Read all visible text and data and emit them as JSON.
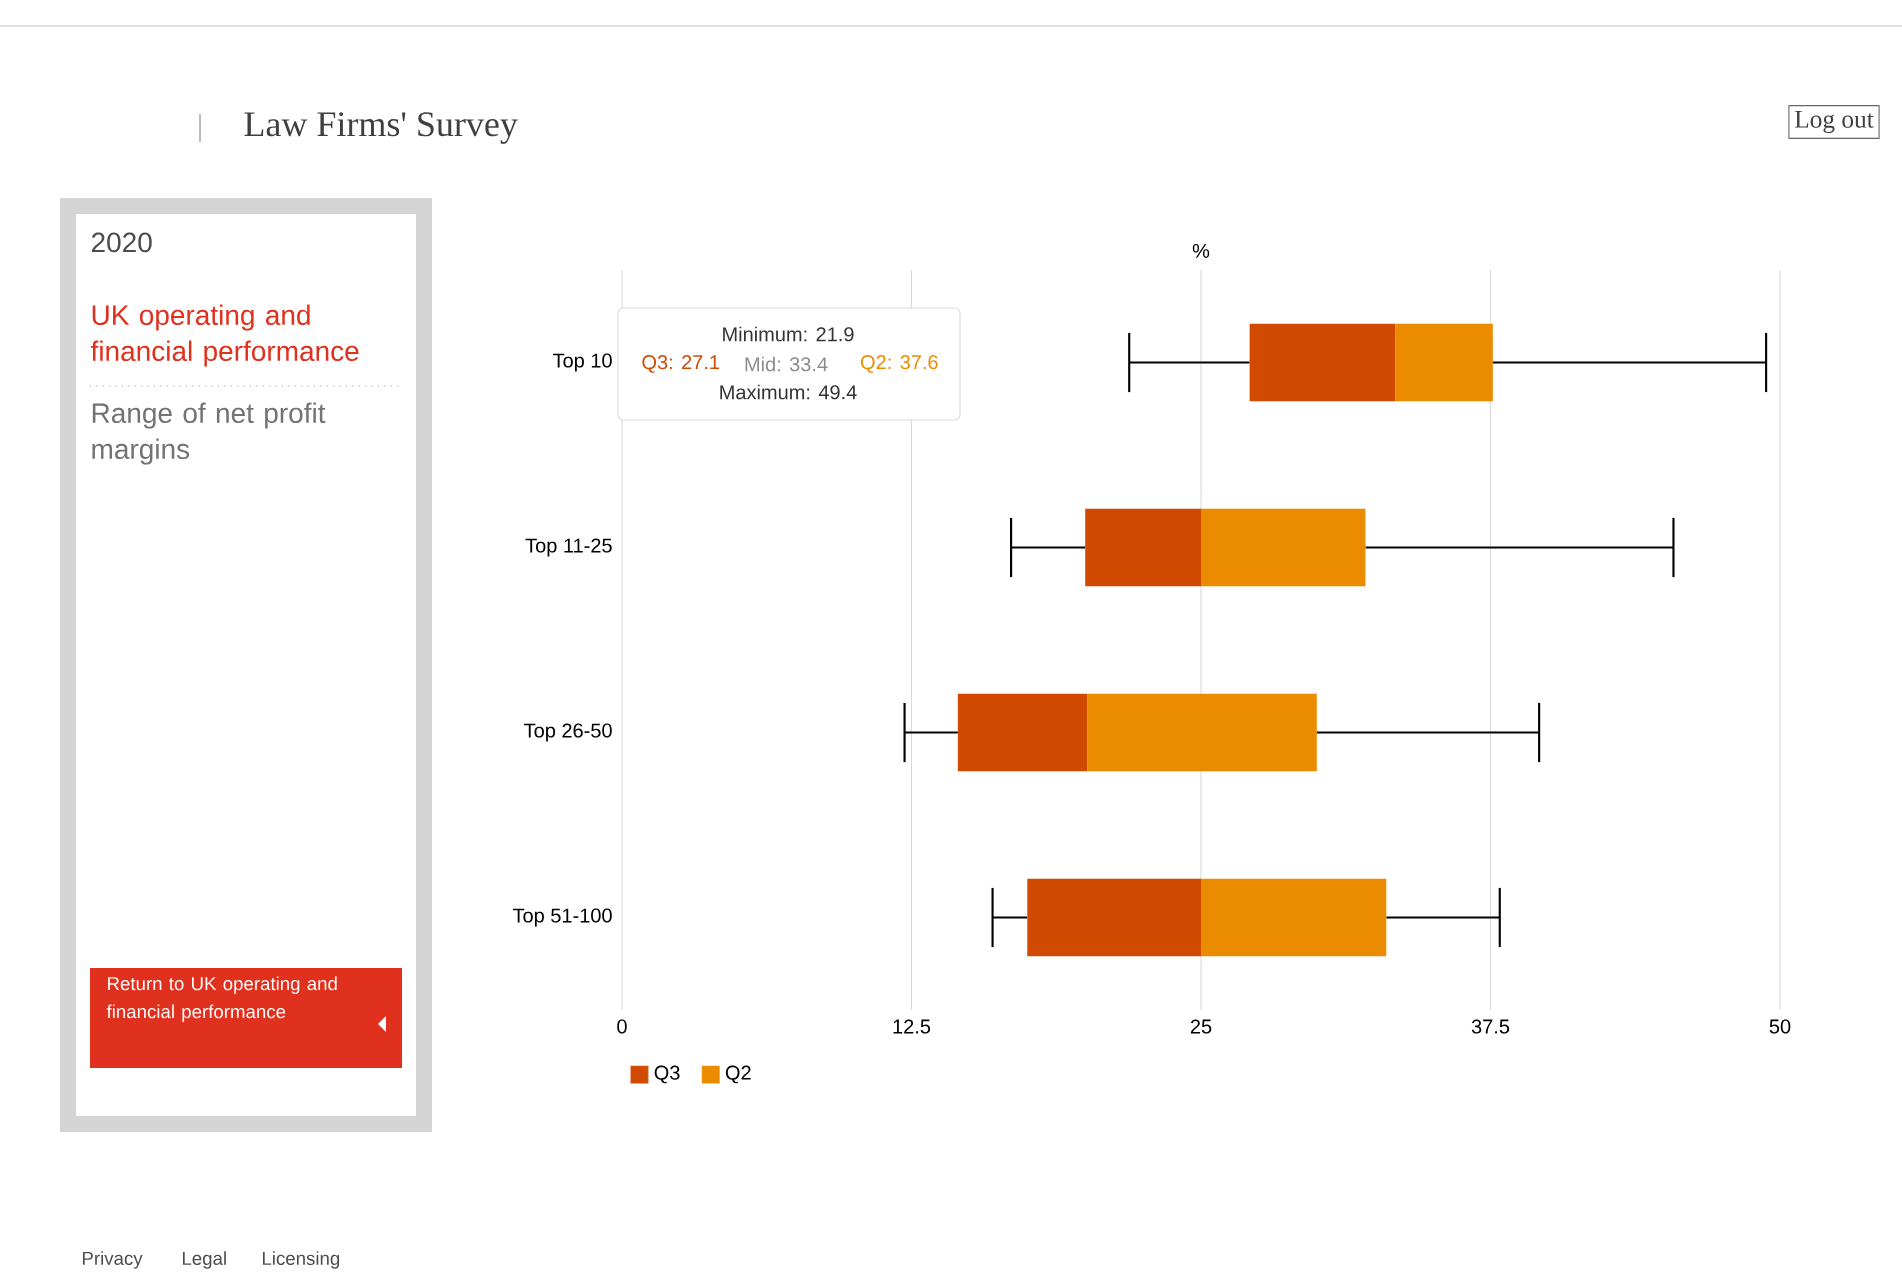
{
  "chart_data": {
    "type": "box",
    "title": "Law Firms' Survey",
    "subtitle": "Range of net profit margins",
    "xlabel": "%",
    "orientation": "horizontal",
    "categories": [
      "Top 10",
      "Top 11-25",
      "Top 26-50",
      "Top 51-100"
    ],
    "boxes": [
      {
        "low": 21.9,
        "q1": 27.1,
        "median": 33.4,
        "q3": 37.6,
        "high": 49.4
      },
      {
        "low": 16.8,
        "q1": 20.0,
        "median": 25.0,
        "q3": 32.1,
        "high": 45.4
      },
      {
        "low": 12.2,
        "q1": 14.5,
        "median": 20.1,
        "q3": 30.0,
        "high": 39.6
      },
      {
        "low": 16.0,
        "q1": 17.5,
        "median": 25.0,
        "q3": 33.0,
        "high": 37.9
      }
    ],
    "colors": [
      [
        "#d04a02",
        "#eb8c00"
      ],
      [
        "#d04a02",
        "#eb8c00"
      ],
      [
        "#d04a02",
        "#eb8c00"
      ],
      [
        "#d04a02",
        "#eb8c00"
      ]
    ],
    "xlim": [
      0,
      50
    ],
    "xticks": [
      0,
      12.5,
      25,
      37.5,
      50
    ],
    "grid": "x",
    "annotations": [
      "2020",
      "UK operating and financial performance",
      "Return to UK operating and financial performance",
      "Minimum: 21.9",
      "Q3: 27.1",
      "Mid: 33.4",
      "Q2: 37.6",
      "Maximum: 49.4",
      "Log out",
      "Privacy",
      "Legal",
      "Licensing",
      "Q3",
      "Q2"
    ]
  }
}
